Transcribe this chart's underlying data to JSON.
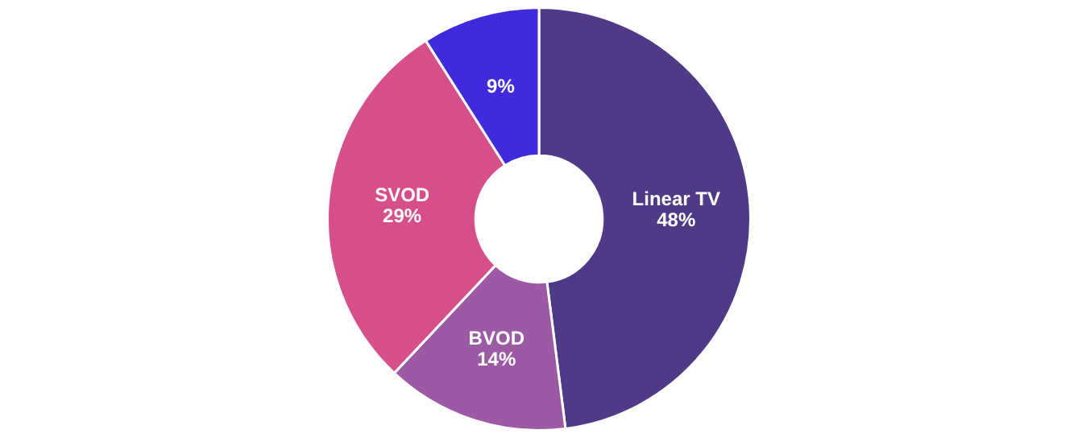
{
  "chart_data": {
    "type": "donut",
    "categories": [
      "Linear TV",
      "BVOD",
      "SVOD",
      null
    ],
    "values": [
      48,
      14,
      29,
      9
    ],
    "colors": [
      "#4f3a87",
      "#9b5aa3",
      "#d64f8a",
      "#3f2bdb"
    ],
    "value_labels": [
      "48%",
      "14%",
      "29%",
      "9%"
    ],
    "legend": false
  }
}
